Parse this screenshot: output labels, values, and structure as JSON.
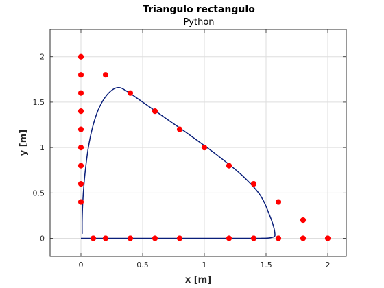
{
  "chart_data": {
    "type": "scatter",
    "title": "Triangulo rectangulo",
    "subtitle": "Python",
    "xlabel": "x [m]",
    "ylabel": "y [m]",
    "xlim": [
      -0.25,
      2.15
    ],
    "ylim": [
      -0.2,
      2.3
    ],
    "xticks": [
      0,
      0.5,
      1,
      1.5,
      2
    ],
    "xtick_labels": [
      "0",
      "0.5",
      "1",
      "1.5",
      "2"
    ],
    "yticks": [
      0,
      0.5,
      1,
      1.5,
      2
    ],
    "ytick_labels": [
      "0",
      "0.5",
      "1",
      "1.5",
      "2"
    ],
    "grid": true,
    "series": [
      {
        "kind": "scatter",
        "color": "#ff0000",
        "points": [
          [
            0,
            0.4
          ],
          [
            0,
            0.6
          ],
          [
            0,
            0.8
          ],
          [
            0,
            1.0
          ],
          [
            0,
            1.2
          ],
          [
            0,
            1.4
          ],
          [
            0,
            1.6
          ],
          [
            0,
            1.8
          ],
          [
            0,
            2.0
          ],
          [
            0.2,
            1.8
          ],
          [
            0.4,
            1.6
          ],
          [
            0.6,
            1.4
          ],
          [
            0.8,
            1.2
          ],
          [
            1.0,
            1.0
          ],
          [
            1.2,
            0.8
          ],
          [
            1.4,
            0.6
          ],
          [
            1.6,
            0.4
          ],
          [
            1.8,
            0.2
          ],
          [
            0.1,
            0
          ],
          [
            0.2,
            0
          ],
          [
            0.4,
            0
          ],
          [
            0.6,
            0
          ],
          [
            0.8,
            0
          ],
          [
            1.2,
            0
          ],
          [
            1.4,
            0
          ],
          [
            1.6,
            0
          ],
          [
            1.8,
            0
          ],
          [
            2.0,
            0
          ]
        ]
      },
      {
        "kind": "line",
        "color": "#0a1f7a",
        "points": [
          [
            0.01,
            0.05
          ],
          [
            0.01,
            0.2
          ],
          [
            0.015,
            0.4
          ],
          [
            0.025,
            0.6
          ],
          [
            0.04,
            0.8
          ],
          [
            0.06,
            1.0
          ],
          [
            0.09,
            1.2
          ],
          [
            0.13,
            1.38
          ],
          [
            0.18,
            1.52
          ],
          [
            0.24,
            1.62
          ],
          [
            0.3,
            1.66
          ],
          [
            0.36,
            1.63
          ],
          [
            0.5,
            1.5
          ],
          [
            0.7,
            1.31
          ],
          [
            0.9,
            1.12
          ],
          [
            1.1,
            0.92
          ],
          [
            1.3,
            0.7
          ],
          [
            1.45,
            0.48
          ],
          [
            1.53,
            0.25
          ],
          [
            1.57,
            0.07
          ],
          [
            1.55,
            0.01
          ],
          [
            1.4,
            0.0
          ],
          [
            1.0,
            0.0
          ],
          [
            0.5,
            0.0
          ],
          [
            0.0,
            0.0
          ]
        ]
      }
    ]
  }
}
